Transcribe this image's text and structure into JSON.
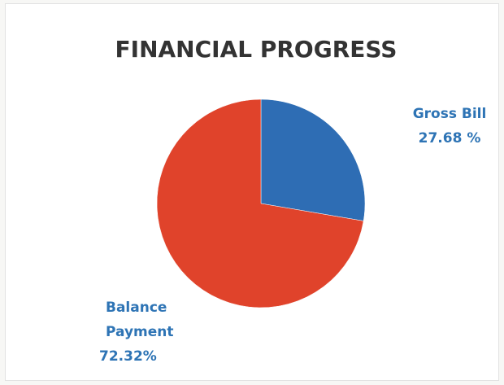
{
  "chart_data": {
    "type": "pie",
    "title": "FINANCIAL PROGRESS",
    "categories": [
      "Gross Bill",
      "Balance Payment"
    ],
    "values": [
      27.68,
      72.32
    ],
    "value_labels": [
      "27.68 %",
      "72.32%"
    ],
    "colors": [
      "#2e6db4",
      "#e0432b"
    ]
  }
}
